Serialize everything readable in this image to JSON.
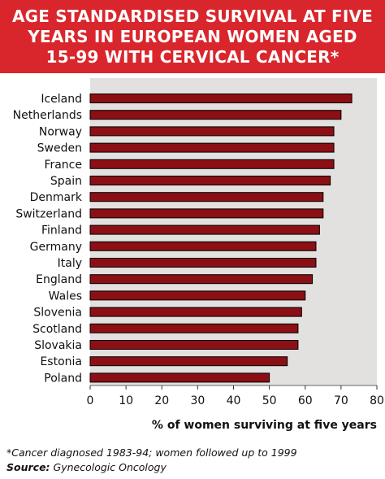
{
  "title_lines": [
    "AGE STANDARDISED SURVIVAL AT FIVE",
    "YEARS IN EUROPEAN WOMEN AGED",
    "15-99 WITH CERVICAL CANCER*"
  ],
  "footnote": "*Cancer diagnosed 1983-94; women followed up to 1999",
  "source": {
    "label": "Source:",
    "text": " Gynecologic Oncology"
  },
  "colors": {
    "title_bg": "#d9262c",
    "plot_bg": "#e2e1e0",
    "bar": "#8b0f14",
    "bar_outline": "#000000"
  },
  "chart_data": {
    "type": "bar",
    "orientation": "horizontal",
    "categories": [
      "Iceland",
      "Netherlands",
      "Norway",
      "Sweden",
      "France",
      "Spain",
      "Denmark",
      "Switzerland",
      "Finland",
      "Germany",
      "Italy",
      "England",
      "Wales",
      "Slovenia",
      "Scotland",
      "Slovakia",
      "Estonia",
      "Poland"
    ],
    "values": [
      73,
      70,
      68,
      68,
      68,
      67,
      65,
      65,
      64,
      63,
      63,
      62,
      60,
      59,
      58,
      58,
      55,
      50
    ],
    "xlabel": "% of women surviving at five years",
    "xlim": [
      0,
      80
    ],
    "xticks": [
      0,
      10,
      20,
      30,
      40,
      50,
      60,
      70,
      80
    ],
    "grid": false
  }
}
